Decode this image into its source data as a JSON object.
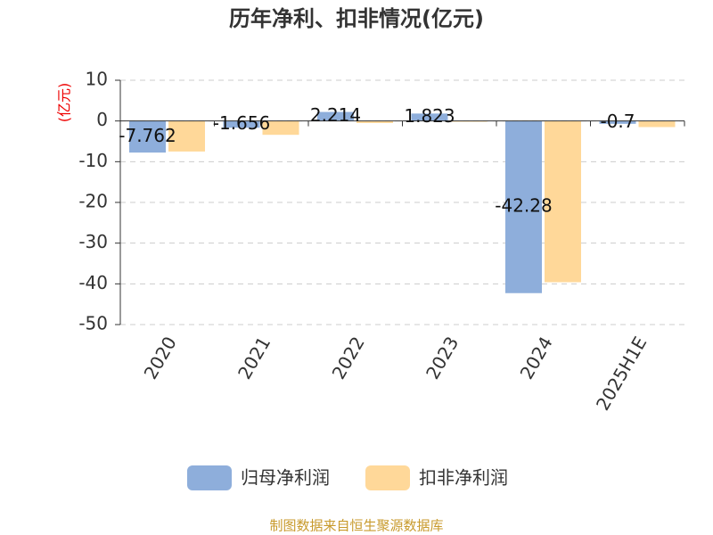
{
  "chart_data": {
    "type": "bar",
    "title": "历年净利、扣非情况(亿元)",
    "y_label": "(亿元)",
    "categories": [
      "2020",
      "2021",
      "2022",
      "2023",
      "2024",
      "2025H1E"
    ],
    "series": [
      {
        "name": "归母净利润",
        "color": "#8eaedb",
        "values": [
          -7.762,
          -1.656,
          2.214,
          1.823,
          -42.28,
          -0.7
        ],
        "show_labels": true
      },
      {
        "name": "扣非净利润",
        "color": "#ffd899",
        "values": [
          -7.5,
          -3.4,
          -0.5,
          -0.2,
          -39.6,
          -1.5
        ],
        "show_labels": false
      }
    ],
    "ylim": [
      -50,
      10
    ],
    "yticks": [
      -50,
      -40,
      -30,
      -20,
      -10,
      0,
      10
    ],
    "grid": true,
    "source": "制图数据来自恒生聚源数据库"
  }
}
